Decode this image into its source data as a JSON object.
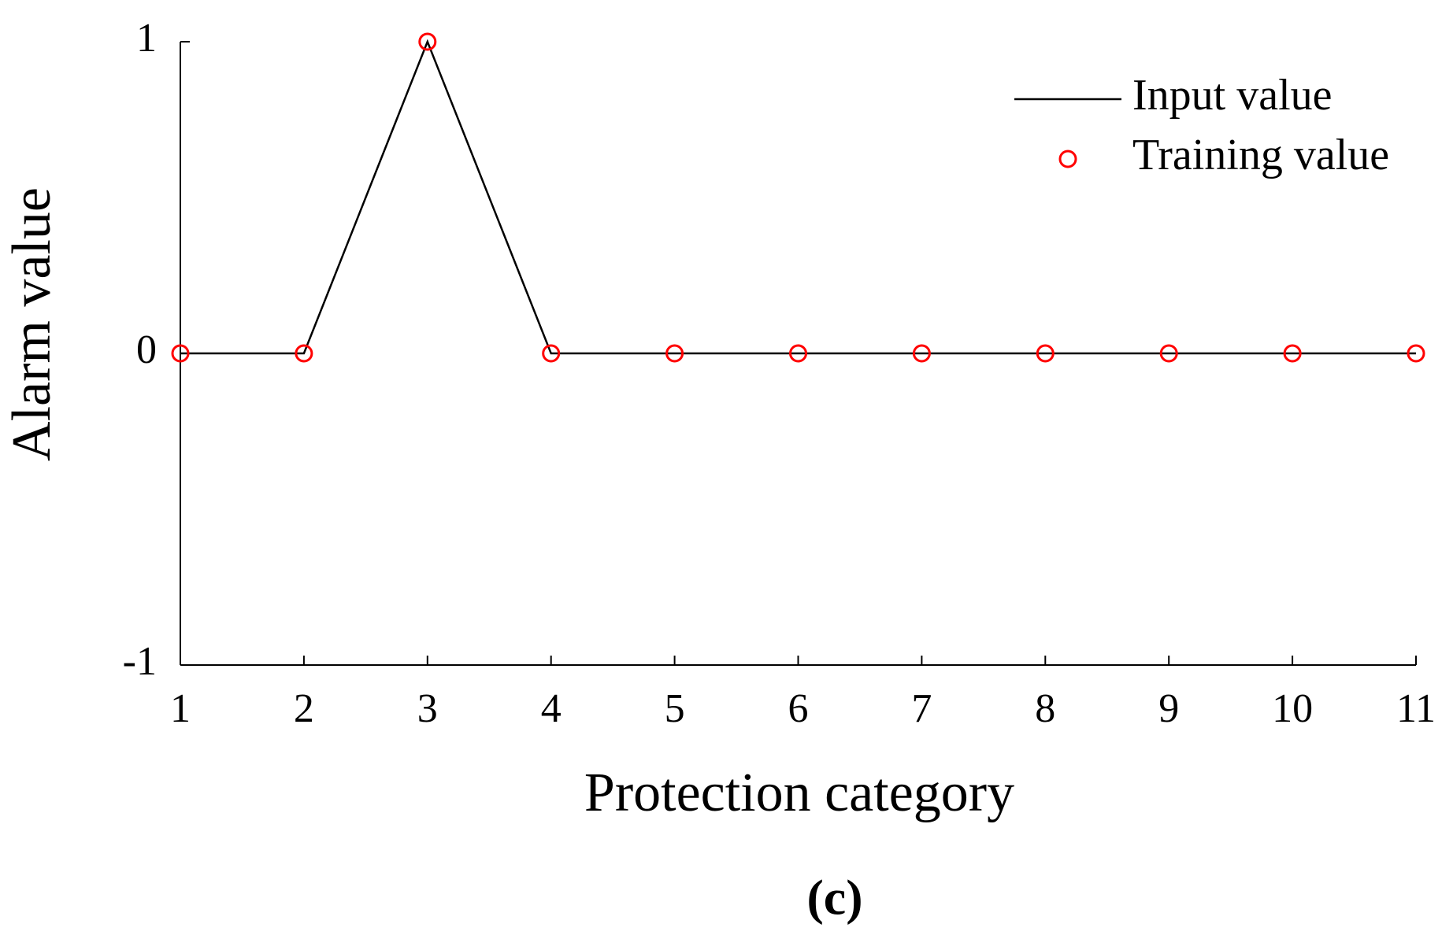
{
  "chart_data": {
    "type": "line",
    "x_label": "Protection category",
    "y_label": "Alarm value",
    "caption": "(c)",
    "x": [
      1,
      2,
      3,
      4,
      5,
      6,
      7,
      8,
      9,
      10,
      11
    ],
    "series": [
      {
        "name": "Input value",
        "color": "#000000",
        "mode": "line",
        "values": [
          0,
          0,
          1,
          0,
          0,
          0,
          0,
          0,
          0,
          0,
          0
        ]
      },
      {
        "name": "Training value",
        "color": "#ff0000",
        "mode": "markers",
        "values": [
          0,
          0,
          1,
          0,
          0,
          0,
          0,
          0,
          0,
          0,
          0
        ]
      }
    ],
    "xlim": [
      1,
      11
    ],
    "xticks": [
      1,
      2,
      3,
      4,
      5,
      6,
      7,
      8,
      9,
      10,
      11
    ],
    "ylim": [
      -1,
      1
    ],
    "yticks": [
      -1,
      0,
      1
    ],
    "grid": false,
    "legend": "upper right"
  }
}
